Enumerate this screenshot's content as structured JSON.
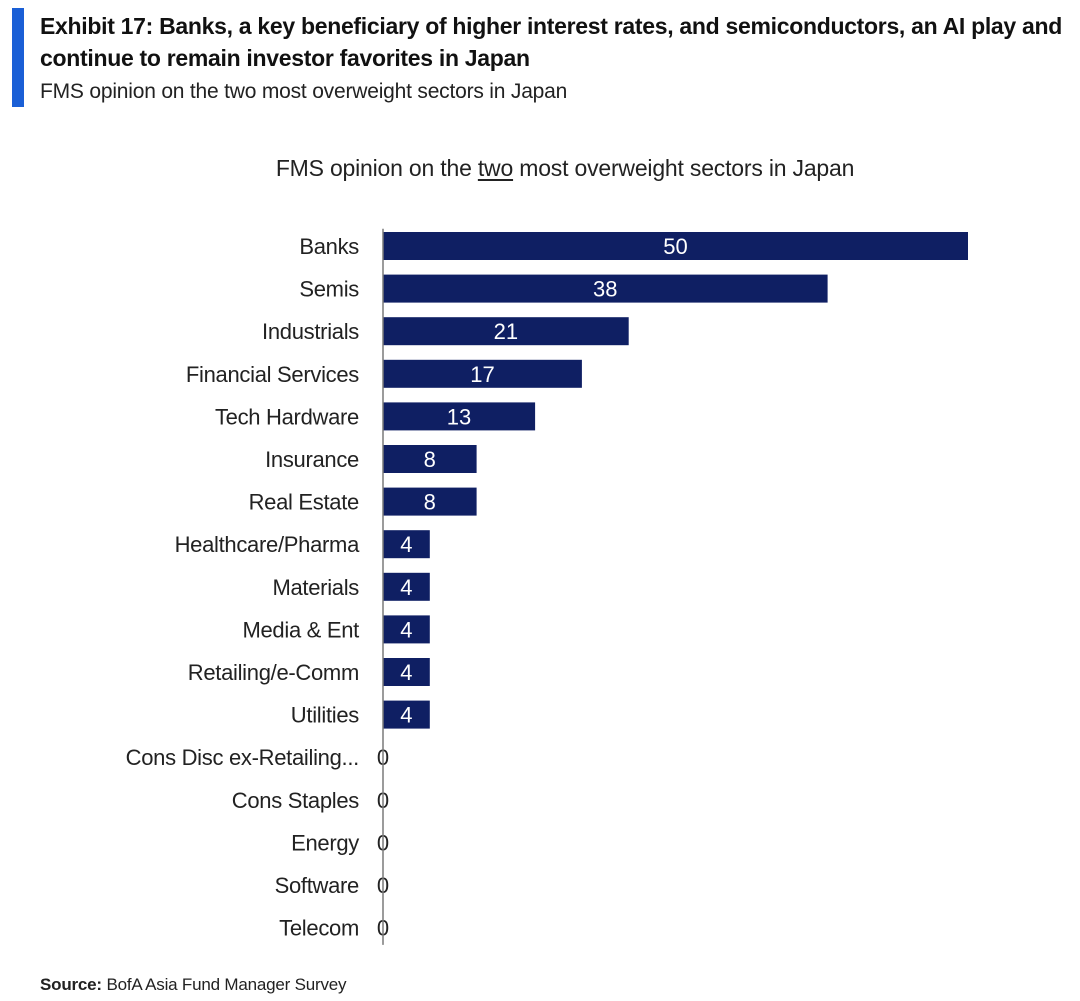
{
  "header": {
    "exhibit_title": "Exhibit 17: Banks, a key beneficiary of higher interest rates, and semiconductors, an AI play and continue to remain investor favorites in Japan",
    "subtitle": "FMS opinion on the two most overweight sectors in Japan",
    "accent_color": "#1a5fd6"
  },
  "footer": {
    "source_label": "Source:",
    "source_text": "BofA Asia Fund Manager Survey"
  },
  "chart_data": {
    "type": "bar",
    "orientation": "horizontal",
    "title_prefix": "FMS opinion on the ",
    "title_emphasis": "two",
    "title_suffix": " most overweight sectors in Japan",
    "categories": [
      "Banks",
      "Semis",
      "Industrials",
      "Financial Services",
      "Tech Hardware",
      "Insurance",
      "Real Estate",
      "Healthcare/Pharma",
      "Materials",
      "Media & Ent",
      "Retailing/e-Comm",
      "Utilities",
      "Cons Disc ex-Retailing...",
      "Cons Staples",
      "Energy",
      "Software",
      "Telecom"
    ],
    "values": [
      50,
      38,
      21,
      17,
      13,
      8,
      8,
      4,
      4,
      4,
      4,
      4,
      0,
      0,
      0,
      0,
      0
    ],
    "xlim": [
      0,
      50
    ],
    "bar_color": "#0f1f63",
    "label_color_inside": "#ffffff",
    "label_color_outside": "#222222",
    "grid": false,
    "legend": "none"
  }
}
